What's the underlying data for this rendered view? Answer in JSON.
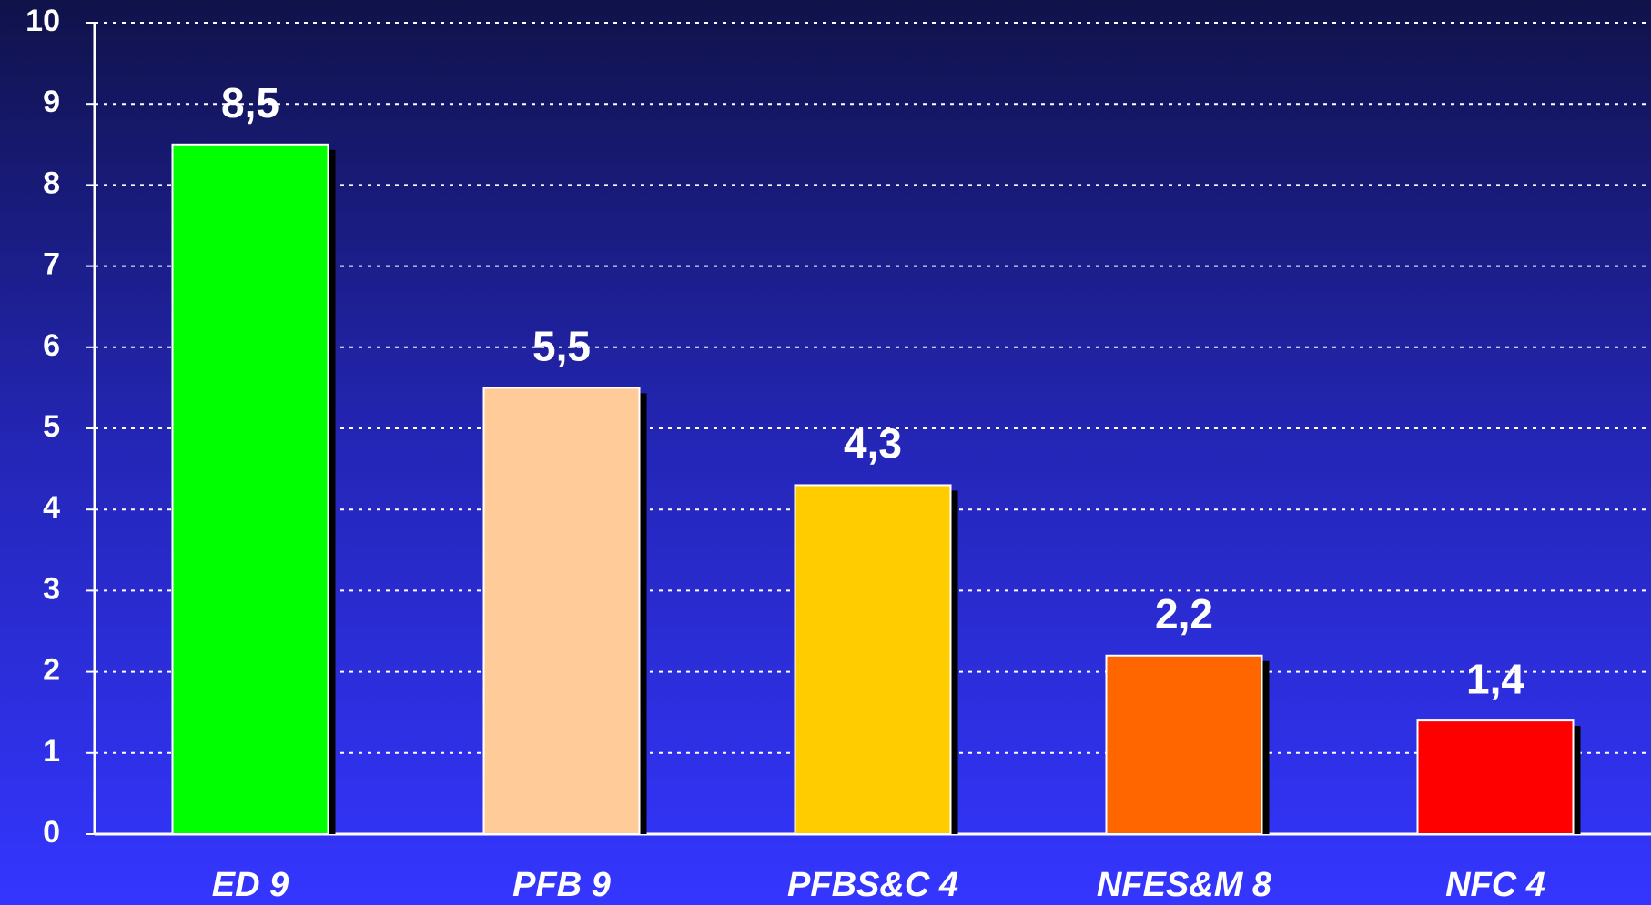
{
  "chart_data": {
    "type": "bar",
    "categories": [
      "ED 9",
      "PFB 9",
      "PFBS&C 4",
      "NFES&M 8",
      "NFC 4"
    ],
    "values": [
      8.5,
      5.5,
      4.3,
      2.2,
      1.4
    ],
    "value_labels": [
      "8,5",
      "5,5",
      "4,3",
      "2,2",
      "1,4"
    ],
    "colors": [
      "#00ff00",
      "#ffcc99",
      "#ffcc00",
      "#ff6600",
      "#ff0000"
    ],
    "ylim": [
      0,
      10
    ],
    "yticks": [
      0,
      1,
      2,
      3,
      4,
      5,
      6,
      7,
      8,
      9,
      10
    ],
    "grid": true
  }
}
